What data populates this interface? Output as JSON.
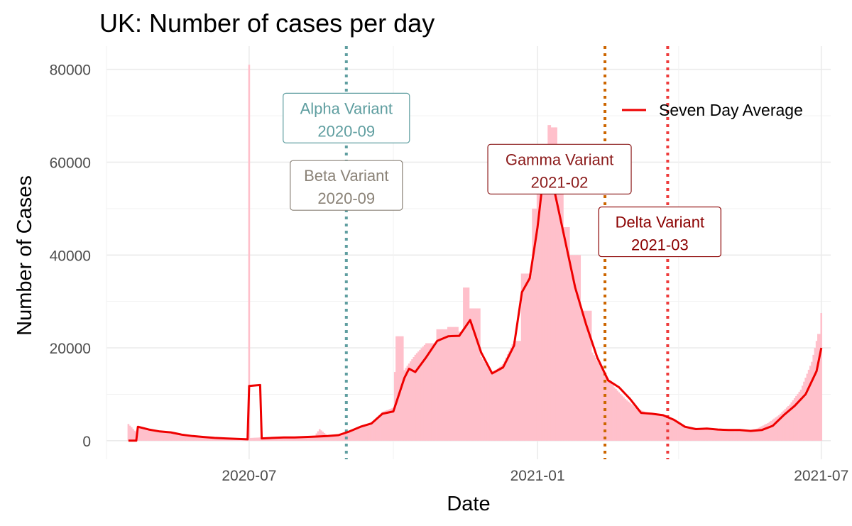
{
  "chart_data": {
    "type": "bar",
    "title": "UK: Number of cases per day",
    "xlabel": "Date",
    "ylabel": "Number of Cases",
    "xlim": [
      "2020-04-01",
      "2021-07-07"
    ],
    "ylim": [
      -4000,
      85000
    ],
    "x_ticks": [
      "2020-07",
      "2021-01",
      "2021-07"
    ],
    "y_ticks": [
      0,
      20000,
      40000,
      60000,
      80000
    ],
    "grid": true,
    "legend": {
      "position": "top-right",
      "entries": [
        {
          "label": "Seven Day Average",
          "color": "#ee0000"
        }
      ]
    },
    "bar_color": "#ffc0cb",
    "daily_cases": [
      [
        "2020-04-15",
        3600
      ],
      [
        "2020-04-20",
        1800
      ],
      [
        "2020-04-22",
        3000
      ],
      [
        "2020-04-28",
        2400
      ],
      [
        "2020-05-05",
        2100
      ],
      [
        "2020-05-12",
        1500
      ],
      [
        "2020-05-20",
        1300
      ],
      [
        "2020-05-28",
        1000
      ],
      [
        "2020-06-05",
        800
      ],
      [
        "2020-06-12",
        700
      ],
      [
        "2020-06-19",
        600
      ],
      [
        "2020-06-26",
        550
      ],
      [
        "2020-06-30",
        500
      ],
      [
        "2020-07-01",
        81000
      ],
      [
        "2020-07-02",
        600
      ],
      [
        "2020-07-08",
        700
      ],
      [
        "2020-07-15",
        650
      ],
      [
        "2020-07-22",
        700
      ],
      [
        "2020-07-29",
        800
      ],
      [
        "2020-08-05",
        900
      ],
      [
        "2020-08-12",
        1100
      ],
      [
        "2020-08-15",
        2500
      ],
      [
        "2020-08-20",
        1100
      ],
      [
        "2020-08-27",
        1300
      ],
      [
        "2020-09-03",
        1800
      ],
      [
        "2020-09-10",
        3100
      ],
      [
        "2020-09-17",
        3800
      ],
      [
        "2020-09-24",
        6200
      ],
      [
        "2020-10-01",
        7100
      ],
      [
        "2020-10-03",
        22500
      ],
      [
        "2020-10-08",
        15200
      ],
      [
        "2020-10-15",
        18500
      ],
      [
        "2020-10-22",
        21000
      ],
      [
        "2020-10-29",
        24000
      ],
      [
        "2020-11-05",
        24500
      ],
      [
        "2020-11-12",
        23500
      ],
      [
        "2020-11-15",
        33000
      ],
      [
        "2020-11-19",
        28500
      ],
      [
        "2020-11-26",
        18000
      ],
      [
        "2020-12-03",
        14500
      ],
      [
        "2020-12-10",
        16500
      ],
      [
        "2020-12-17",
        21500
      ],
      [
        "2020-12-22",
        36000
      ],
      [
        "2020-12-29",
        50000
      ],
      [
        "2021-01-01",
        53000
      ],
      [
        "2021-01-05",
        60000
      ],
      [
        "2021-01-08",
        68000
      ],
      [
        "2021-01-10",
        67500
      ],
      [
        "2021-01-14",
        55000
      ],
      [
        "2021-01-18",
        46000
      ],
      [
        "2021-01-22",
        40000
      ],
      [
        "2021-01-29",
        28000
      ],
      [
        "2021-02-05",
        19000
      ],
      [
        "2021-02-12",
        15000
      ],
      [
        "2021-02-19",
        11500
      ],
      [
        "2021-02-26",
        9000
      ],
      [
        "2021-03-05",
        7000
      ],
      [
        "2021-03-12",
        6000
      ],
      [
        "2021-03-19",
        5800
      ],
      [
        "2021-03-26",
        5000
      ],
      [
        "2021-04-02",
        3500
      ],
      [
        "2021-04-09",
        2800
      ],
      [
        "2021-04-16",
        2700
      ],
      [
        "2021-04-23",
        2500
      ],
      [
        "2021-04-30",
        2200
      ],
      [
        "2021-05-07",
        2100
      ],
      [
        "2021-05-14",
        2200
      ],
      [
        "2021-05-21",
        2600
      ],
      [
        "2021-05-28",
        3800
      ],
      [
        "2021-06-04",
        5500
      ],
      [
        "2021-06-11",
        7800
      ],
      [
        "2021-06-18",
        11000
      ],
      [
        "2021-06-25",
        17000
      ],
      [
        "2021-06-29",
        23000
      ],
      [
        "2021-07-01",
        27500
      ]
    ],
    "series": [
      {
        "name": "Seven Day Average",
        "color": "#ee0000",
        "points": [
          [
            "2020-04-15",
            0
          ],
          [
            "2020-04-20",
            0
          ],
          [
            "2020-04-21",
            3000
          ],
          [
            "2020-04-28",
            2400
          ],
          [
            "2020-05-05",
            2000
          ],
          [
            "2020-05-12",
            1800
          ],
          [
            "2020-05-19",
            1300
          ],
          [
            "2020-05-26",
            1000
          ],
          [
            "2020-06-02",
            800
          ],
          [
            "2020-06-09",
            600
          ],
          [
            "2020-06-16",
            500
          ],
          [
            "2020-06-23",
            400
          ],
          [
            "2020-06-30",
            300
          ],
          [
            "2020-07-01",
            11800
          ],
          [
            "2020-07-08",
            12000
          ],
          [
            "2020-07-09",
            500
          ],
          [
            "2020-07-16",
            600
          ],
          [
            "2020-07-23",
            700
          ],
          [
            "2020-07-30",
            700
          ],
          [
            "2020-08-06",
            800
          ],
          [
            "2020-08-13",
            900
          ],
          [
            "2020-08-20",
            1000
          ],
          [
            "2020-08-27",
            1200
          ],
          [
            "2020-09-03",
            2000
          ],
          [
            "2020-09-10",
            3000
          ],
          [
            "2020-09-17",
            3700
          ],
          [
            "2020-09-24",
            5800
          ],
          [
            "2020-10-01",
            6300
          ],
          [
            "2020-10-08",
            13500
          ],
          [
            "2020-10-11",
            15500
          ],
          [
            "2020-10-15",
            14800
          ],
          [
            "2020-10-22",
            18000
          ],
          [
            "2020-10-29",
            21500
          ],
          [
            "2020-11-05",
            22500
          ],
          [
            "2020-11-12",
            22600
          ],
          [
            "2020-11-19",
            26000
          ],
          [
            "2020-11-26",
            19000
          ],
          [
            "2020-12-03",
            14500
          ],
          [
            "2020-12-10",
            15800
          ],
          [
            "2020-12-17",
            20500
          ],
          [
            "2020-12-22",
            32000
          ],
          [
            "2020-12-27",
            35000
          ],
          [
            "2021-01-01",
            46000
          ],
          [
            "2021-01-04",
            55000
          ],
          [
            "2021-01-07",
            58500
          ],
          [
            "2021-01-11",
            55000
          ],
          [
            "2021-01-18",
            44000
          ],
          [
            "2021-01-25",
            33000
          ],
          [
            "2021-02-01",
            25000
          ],
          [
            "2021-02-08",
            18000
          ],
          [
            "2021-02-15",
            13000
          ],
          [
            "2021-02-22",
            11500
          ],
          [
            "2021-03-01",
            9000
          ],
          [
            "2021-03-08",
            6000
          ],
          [
            "2021-03-15",
            5800
          ],
          [
            "2021-03-22",
            5500
          ],
          [
            "2021-03-29",
            4500
          ],
          [
            "2021-04-05",
            3000
          ],
          [
            "2021-04-12",
            2500
          ],
          [
            "2021-04-19",
            2600
          ],
          [
            "2021-04-26",
            2400
          ],
          [
            "2021-05-03",
            2300
          ],
          [
            "2021-05-10",
            2300
          ],
          [
            "2021-05-17",
            2100
          ],
          [
            "2021-05-24",
            2300
          ],
          [
            "2021-05-31",
            3200
          ],
          [
            "2021-06-07",
            5500
          ],
          [
            "2021-06-14",
            7500
          ],
          [
            "2021-06-21",
            10000
          ],
          [
            "2021-06-28",
            15000
          ],
          [
            "2021-07-01",
            20000
          ]
        ]
      }
    ],
    "vlines": [
      {
        "date": "2020-09-01",
        "color": "#5f9ea0"
      },
      {
        "date": "2021-02-13",
        "color": "#cc6600"
      },
      {
        "date": "2021-03-25",
        "color": "#ee3b3b"
      }
    ],
    "annotations": [
      {
        "line1": "Alpha Variant",
        "line2": "2020-09",
        "color": "#5f9ea0"
      },
      {
        "line1": "Beta Variant",
        "line2": "2020-09",
        "color": "#8b8378"
      },
      {
        "line1": "Gamma Variant",
        "line2": "2021-02",
        "color": "#8b1a1a"
      },
      {
        "line1": "Delta Variant",
        "line2": "2021-03",
        "color": "#8b0000"
      }
    ]
  }
}
